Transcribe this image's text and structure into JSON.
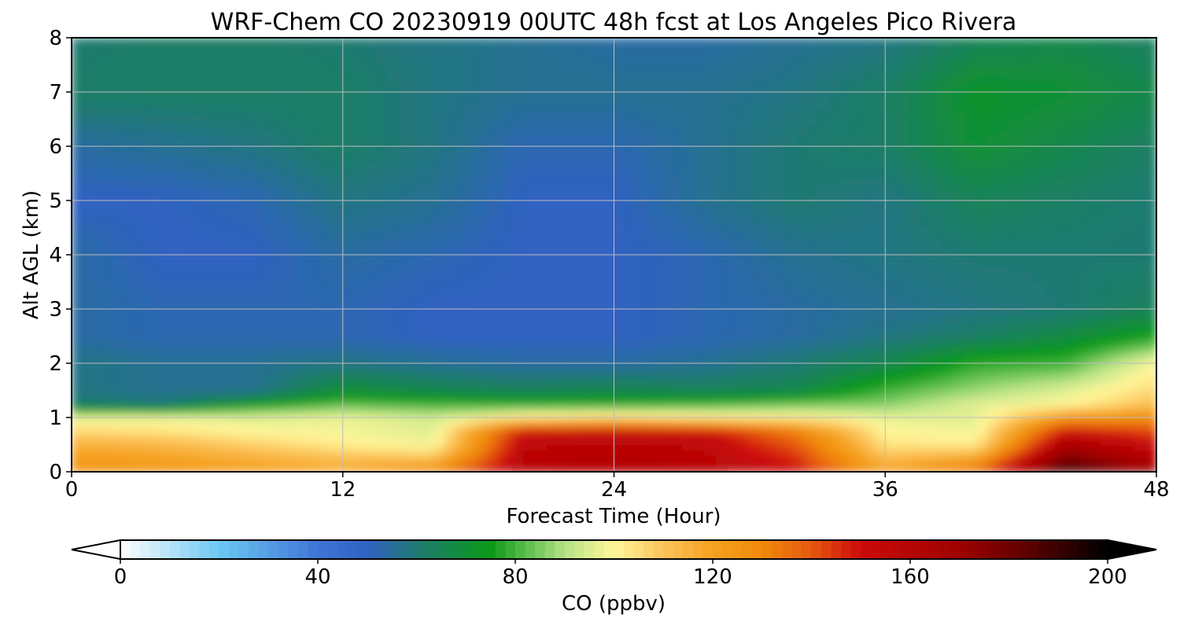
{
  "chart_data": {
    "type": "heatmap",
    "title": "WRF-Chem CO  20230919 00UTC 48h fcst at Los Angeles Pico Rivera",
    "xlabel": "Forecast Time (Hour)",
    "ylabel": "Alt AGL (km)",
    "xlim": [
      0,
      48
    ],
    "ylim": [
      0,
      8
    ],
    "x_ticks": [
      "0",
      "12",
      "24",
      "36",
      "48"
    ],
    "y_ticks": [
      "0",
      "1",
      "2",
      "3",
      "4",
      "5",
      "6",
      "7",
      "8"
    ],
    "grid": true,
    "colorbar": {
      "label": "CO  (ppbv)",
      "range": [
        0,
        200
      ],
      "ticks": [
        "0",
        "40",
        "80",
        "120",
        "160",
        "200"
      ],
      "extend": "both",
      "stops": [
        {
          "v": 0,
          "color": "#ffffff"
        },
        {
          "v": 20,
          "color": "#6cc8f2"
        },
        {
          "v": 40,
          "color": "#3f74d6"
        },
        {
          "v": 50,
          "color": "#3062c2"
        },
        {
          "v": 60,
          "color": "#1f7a72"
        },
        {
          "v": 75,
          "color": "#0a9a18"
        },
        {
          "v": 90,
          "color": "#b5e285"
        },
        {
          "v": 100,
          "color": "#fff79a"
        },
        {
          "v": 110,
          "color": "#fcc35a"
        },
        {
          "v": 120,
          "color": "#f5a120"
        },
        {
          "v": 130,
          "color": "#f08a0a"
        },
        {
          "v": 140,
          "color": "#e55810"
        },
        {
          "v": 150,
          "color": "#cc0a0a"
        },
        {
          "v": 170,
          "color": "#9e0000"
        },
        {
          "v": 185,
          "color": "#560000"
        },
        {
          "v": 200,
          "color": "#000000"
        }
      ]
    },
    "hours": [
      0,
      4,
      8,
      12,
      16,
      20,
      24,
      28,
      32,
      36,
      40,
      44,
      48
    ],
    "altitudes_km": [
      0,
      0.25,
      0.5,
      0.75,
      1,
      1.25,
      1.5,
      2,
      2.5,
      3,
      4,
      5,
      6,
      7,
      8
    ],
    "values": [
      [
        128,
        126,
        122,
        118,
        132,
        160,
        162,
        160,
        150,
        122,
        138,
        192,
        168
      ],
      [
        122,
        120,
        116,
        112,
        112,
        158,
        160,
        158,
        146,
        112,
        120,
        178,
        160
      ],
      [
        116,
        114,
        108,
        102,
        98,
        156,
        158,
        156,
        140,
        104,
        102,
        165,
        152
      ],
      [
        106,
        104,
        100,
        98,
        96,
        150,
        152,
        150,
        132,
        100,
        98,
        150,
        142
      ],
      [
        98,
        98,
        96,
        98,
        94,
        105,
        108,
        104,
        102,
        97,
        96,
        125,
        128
      ],
      [
        62,
        60,
        74,
        82,
        80,
        78,
        78,
        80,
        84,
        86,
        96,
        100,
        112
      ],
      [
        58,
        56,
        56,
        70,
        66,
        64,
        66,
        64,
        66,
        80,
        88,
        96,
        106
      ],
      [
        58,
        56,
        56,
        58,
        56,
        54,
        54,
        56,
        60,
        66,
        78,
        80,
        100
      ],
      [
        54,
        52,
        52,
        52,
        50,
        50,
        50,
        52,
        54,
        58,
        62,
        68,
        76
      ],
      [
        54,
        52,
        52,
        52,
        50,
        50,
        50,
        52,
        54,
        56,
        58,
        60,
        64
      ],
      [
        54,
        50,
        50,
        54,
        52,
        50,
        50,
        52,
        56,
        58,
        60,
        60,
        60
      ],
      [
        50,
        50,
        52,
        58,
        56,
        50,
        50,
        56,
        60,
        58,
        64,
        62,
        60
      ],
      [
        54,
        56,
        58,
        62,
        58,
        52,
        52,
        56,
        60,
        62,
        70,
        66,
        62
      ],
      [
        62,
        62,
        62,
        62,
        58,
        56,
        56,
        56,
        58,
        62,
        72,
        70,
        66
      ],
      [
        60,
        62,
        62,
        60,
        58,
        56,
        54,
        54,
        56,
        58,
        64,
        66,
        62
      ]
    ]
  }
}
